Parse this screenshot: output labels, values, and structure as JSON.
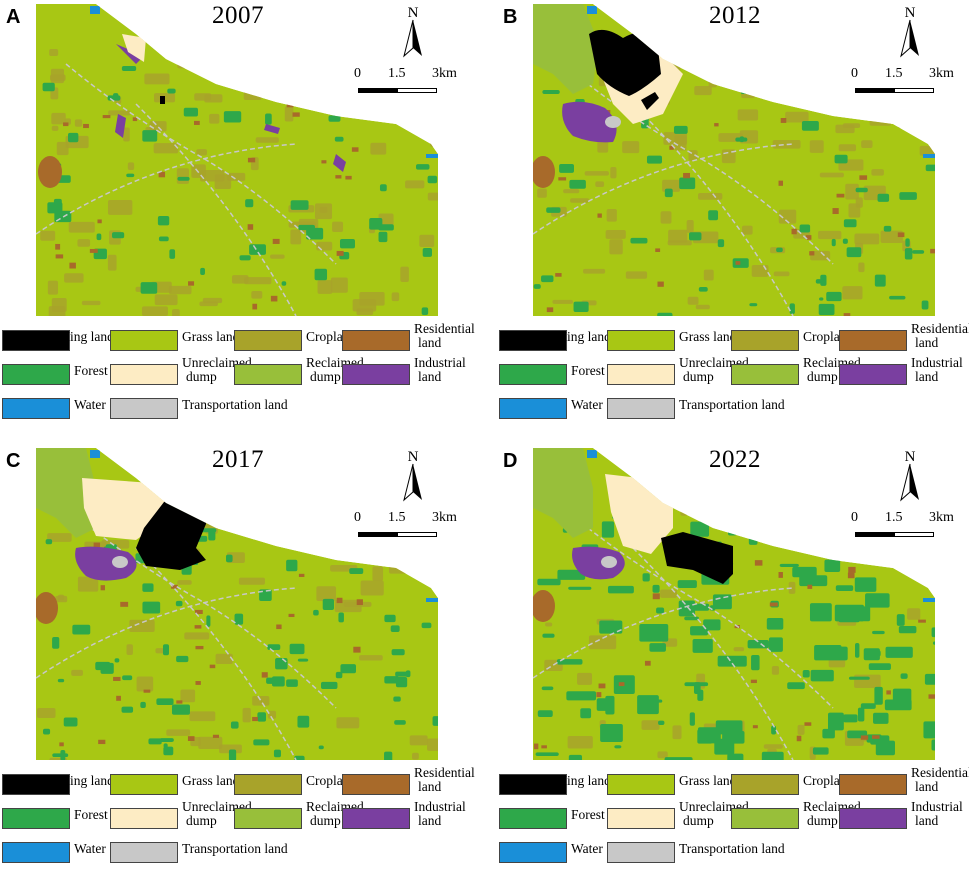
{
  "colors": {
    "ming": "#000000",
    "grass": "#a8c714",
    "crop": "#a8a32a",
    "residential": "#a86a2a",
    "forest": "#2ea84a",
    "unreclaimed": "#fdecc4",
    "reclaimed": "#98bf3a",
    "industrial": "#7a3fa0",
    "water": "#1a8fd8",
    "transport": "#c8c8c8"
  },
  "north": {
    "label": "N"
  },
  "scale": {
    "l0": "0",
    "l1": "1.5",
    "l2": "3km"
  },
  "legend": {
    "ming": "Ming land",
    "grass": "Grass land",
    "crop": "Cropland",
    "residential_1": "Residential",
    "residential_2": "land",
    "forest": "Forest",
    "unreclaimed_1": "Unreclaimed",
    "unreclaimed_2": "dump",
    "reclaimed_1": "Reclaimed",
    "reclaimed_2": "dump",
    "industrial_1": "Industrial",
    "industrial_2": "land",
    "water": "Water",
    "transport": "Transportation land"
  },
  "panels": [
    {
      "letter": "A",
      "year": "2007"
    },
    {
      "letter": "B",
      "year": "2012"
    },
    {
      "letter": "C",
      "year": "2017"
    },
    {
      "letter": "D",
      "year": "2022"
    }
  ]
}
